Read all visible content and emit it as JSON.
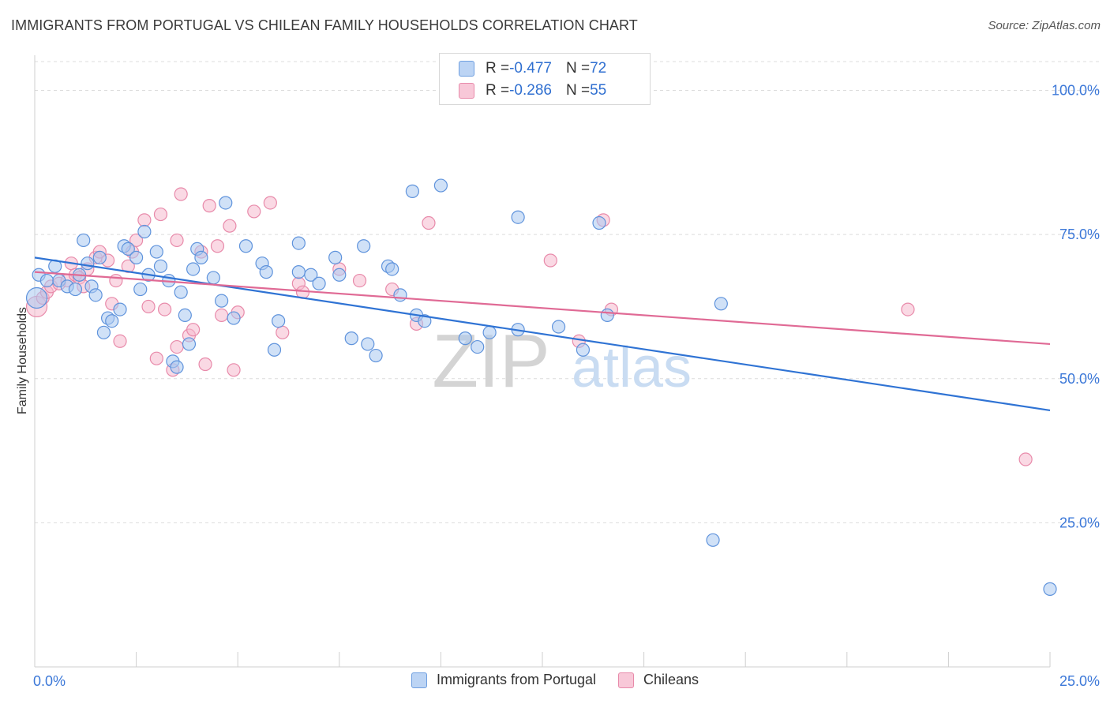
{
  "title": "IMMIGRANTS FROM PORTUGAL VS CHILEAN FAMILY HOUSEHOLDS CORRELATION CHART",
  "source": "Source: ZipAtlas.com",
  "watermark": {
    "zip": "ZIP",
    "atlas": "atlas"
  },
  "colors": {
    "blue": "#2f73d4",
    "pink": "#e06a95",
    "blue_fill": "#a9c8f0",
    "pink_fill": "#f5b9cd",
    "axis_text": "#3c78d8",
    "grid": "#dcdcdc"
  },
  "legend": {
    "rows": [
      {
        "r_label": "R = ",
        "r_value": "-0.477",
        "n_label": "N = ",
        "n_value": "72"
      },
      {
        "r_label": "R = ",
        "r_value": "-0.286",
        "n_label": "N = ",
        "n_value": "55"
      }
    ]
  },
  "bottom_legend": [
    "Immigrants from Portugal",
    "Chileans"
  ],
  "chart_data": {
    "type": "scatter",
    "title": "IMMIGRANTS FROM PORTUGAL VS CHILEAN FAMILY HOUSEHOLDS CORRELATION CHART",
    "xlabel": "",
    "ylabel": "Family Households",
    "xlim": [
      0,
      25
    ],
    "ylim": [
      0,
      105
    ],
    "x_tick_labels": [
      "0.0%",
      "25.0%"
    ],
    "y_ticks": [
      25,
      50,
      75,
      100
    ],
    "y_tick_labels": [
      "25.0%",
      "50.0%",
      "75.0%",
      "100.0%"
    ],
    "grid": true,
    "series": [
      {
        "name": "Immigrants from Portugal",
        "color": "#2f73d4",
        "r": -0.477,
        "n": 72,
        "trend": {
          "x": [
            0,
            25
          ],
          "y": [
            71.0,
            44.5
          ]
        },
        "points": [
          [
            0.1,
            68
          ],
          [
            0.3,
            67
          ],
          [
            0.5,
            69.5
          ],
          [
            0.6,
            67
          ],
          [
            0.8,
            66
          ],
          [
            1.0,
            65.5
          ],
          [
            1.1,
            68
          ],
          [
            1.2,
            74
          ],
          [
            1.3,
            70
          ],
          [
            1.4,
            66
          ],
          [
            1.5,
            64.5
          ],
          [
            1.6,
            71
          ],
          [
            1.7,
            58
          ],
          [
            1.8,
            60.5
          ],
          [
            1.9,
            60
          ],
          [
            2.1,
            62
          ],
          [
            2.2,
            73
          ],
          [
            2.3,
            72.5
          ],
          [
            2.5,
            71
          ],
          [
            2.6,
            65.5
          ],
          [
            2.7,
            75.5
          ],
          [
            2.8,
            68
          ],
          [
            3.0,
            72
          ],
          [
            3.1,
            69.5
          ],
          [
            3.3,
            67
          ],
          [
            3.4,
            53
          ],
          [
            3.5,
            52
          ],
          [
            3.6,
            65
          ],
          [
            3.7,
            61
          ],
          [
            3.8,
            56
          ],
          [
            3.9,
            69
          ],
          [
            4.0,
            72.5
          ],
          [
            4.1,
            71
          ],
          [
            4.4,
            67.5
          ],
          [
            4.6,
            63.5
          ],
          [
            4.7,
            80.5
          ],
          [
            4.9,
            60.5
          ],
          [
            5.2,
            73
          ],
          [
            5.6,
            70
          ],
          [
            5.7,
            68.5
          ],
          [
            5.9,
            55
          ],
          [
            6.0,
            60
          ],
          [
            6.5,
            73.5
          ],
          [
            6.5,
            68.5
          ],
          [
            6.8,
            68
          ],
          [
            7.0,
            66.5
          ],
          [
            7.4,
            71
          ],
          [
            7.5,
            68
          ],
          [
            7.8,
            57
          ],
          [
            8.1,
            73
          ],
          [
            8.2,
            56
          ],
          [
            8.4,
            54
          ],
          [
            8.7,
            69.5
          ],
          [
            8.8,
            69
          ],
          [
            9.0,
            64.5
          ],
          [
            9.3,
            82.5
          ],
          [
            9.4,
            61
          ],
          [
            9.6,
            60
          ],
          [
            10.0,
            83.5
          ],
          [
            10.6,
            57
          ],
          [
            10.9,
            55.5
          ],
          [
            11.2,
            58
          ],
          [
            11.9,
            78
          ],
          [
            11.9,
            58.5
          ],
          [
            12.9,
            59
          ],
          [
            13.5,
            55
          ],
          [
            13.9,
            77
          ],
          [
            14.1,
            61
          ],
          [
            16.9,
            63
          ],
          [
            16.7,
            22
          ],
          [
            25.0,
            13.5
          ],
          [
            0.05,
            64
          ]
        ]
      },
      {
        "name": "Chileans",
        "color": "#e06a95",
        "r": -0.286,
        "n": 55,
        "trend": {
          "x": [
            0,
            25
          ],
          "y": [
            68.5,
            56.0
          ]
        },
        "points": [
          [
            0.05,
            62.5
          ],
          [
            0.2,
            64
          ],
          [
            0.3,
            65
          ],
          [
            0.4,
            66
          ],
          [
            0.6,
            66.5
          ],
          [
            0.8,
            67
          ],
          [
            0.9,
            70
          ],
          [
            1.0,
            68
          ],
          [
            1.1,
            67.5
          ],
          [
            1.2,
            66
          ],
          [
            1.3,
            69
          ],
          [
            1.5,
            71
          ],
          [
            1.6,
            72
          ],
          [
            1.8,
            70.5
          ],
          [
            1.9,
            63
          ],
          [
            2.0,
            67
          ],
          [
            2.1,
            56.5
          ],
          [
            2.3,
            69.5
          ],
          [
            2.4,
            72
          ],
          [
            2.5,
            74
          ],
          [
            2.7,
            77.5
          ],
          [
            2.8,
            62.5
          ],
          [
            3.0,
            53.5
          ],
          [
            3.1,
            78.5
          ],
          [
            3.2,
            62
          ],
          [
            3.4,
            51.5
          ],
          [
            3.5,
            55.5
          ],
          [
            3.5,
            74
          ],
          [
            3.6,
            82
          ],
          [
            3.8,
            57.5
          ],
          [
            3.9,
            58.5
          ],
          [
            4.2,
            52.5
          ],
          [
            4.1,
            72
          ],
          [
            4.3,
            80
          ],
          [
            4.5,
            73
          ],
          [
            4.6,
            61
          ],
          [
            4.8,
            76.5
          ],
          [
            4.9,
            51.5
          ],
          [
            5.0,
            61.5
          ],
          [
            5.4,
            79
          ],
          [
            5.8,
            80.5
          ],
          [
            6.1,
            58
          ],
          [
            6.5,
            66.5
          ],
          [
            6.6,
            65
          ],
          [
            7.5,
            69
          ],
          [
            8.0,
            67
          ],
          [
            8.8,
            65.5
          ],
          [
            9.4,
            59.5
          ],
          [
            9.7,
            77
          ],
          [
            12.7,
            70.5
          ],
          [
            13.4,
            56.5
          ],
          [
            14.0,
            77.5
          ],
          [
            14.2,
            62
          ],
          [
            21.5,
            62
          ],
          [
            24.4,
            36
          ]
        ]
      }
    ]
  }
}
